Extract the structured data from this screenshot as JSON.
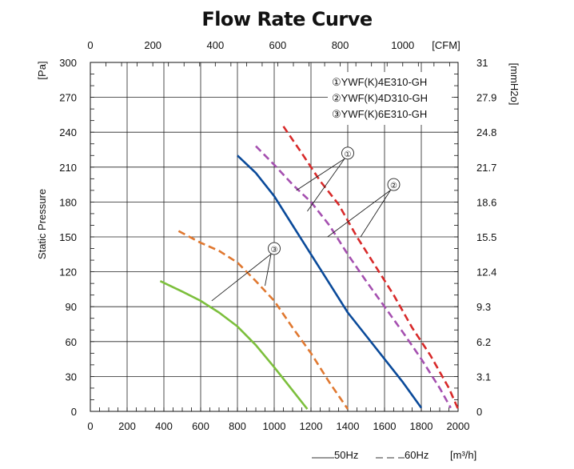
{
  "chart_data": {
    "type": "line",
    "title": "Flow Rate Curve",
    "ylabel": "Static Pressure",
    "x_unit": "[m³/h]",
    "x2_unit": "[CFM]",
    "y_unit": "[Pa]",
    "y2_unit": "[mmH2o]",
    "xlim": [
      0,
      2000
    ],
    "ylim": [
      0,
      300
    ],
    "grid": true,
    "x_ticks": [
      "0",
      "200",
      "400",
      "600",
      "800",
      "1000",
      "1200",
      "1400",
      "1600",
      "1800",
      "2000"
    ],
    "y_ticks": [
      "0",
      "30",
      "60",
      "90",
      "120",
      "150",
      "180",
      "210",
      "240",
      "270",
      "300"
    ],
    "x2_ticks": [
      {
        "label": "0",
        "x": 0
      },
      {
        "label": "200",
        "x": 340
      },
      {
        "label": "400",
        "x": 680
      },
      {
        "label": "600",
        "x": 1019
      },
      {
        "label": "800",
        "x": 1359
      },
      {
        "label": "1000",
        "x": 1699
      }
    ],
    "y2_ticks": [
      {
        "label": "0",
        "y": 0
      },
      {
        "label": "3.1",
        "y": 30
      },
      {
        "label": "6.2",
        "y": 60
      },
      {
        "label": "9.3",
        "y": 90
      },
      {
        "label": "12.4",
        "y": 120
      },
      {
        "label": "15.5",
        "y": 150
      },
      {
        "label": "18.6",
        "y": 180
      },
      {
        "label": "21.7",
        "y": 210
      },
      {
        "label": "24.8",
        "y": 240
      },
      {
        "label": "27.9",
        "y": 270
      },
      {
        "label": "31",
        "y": 300
      }
    ],
    "legend": [
      "①YWF(K)4E310-GH",
      "②YWF(K)4D310-GH",
      "③YWF(K)6E310-GH"
    ],
    "legend_position": "top-right",
    "frequency_legend": [
      {
        "label": "50Hz",
        "style": "solid"
      },
      {
        "label": "60Hz",
        "style": "dashed"
      }
    ],
    "series": [
      {
        "id": "1-50",
        "curve": "1",
        "freq": "50Hz",
        "color": "#0a4a9a",
        "dashed": false,
        "x": [
          800,
          900,
          1000,
          1100,
          1200,
          1300,
          1400,
          1500,
          1600,
          1700,
          1800
        ],
        "y": [
          220,
          205,
          185,
          160,
          135,
          110,
          85,
          65,
          45,
          25,
          3
        ]
      },
      {
        "id": "1-60",
        "curve": "1",
        "freq": "60Hz",
        "color": "#d82a2a",
        "dashed": true,
        "x": [
          1050,
          1150,
          1250,
          1350,
          1450,
          1550,
          1650,
          1750,
          1850,
          1950,
          2000
        ],
        "y": [
          245,
          222,
          198,
          178,
          150,
          125,
          100,
          72,
          48,
          20,
          2
        ]
      },
      {
        "id": "2-60",
        "curve": "2",
        "freq": "60Hz",
        "color": "#a550b0",
        "dashed": true,
        "x": [
          900,
          1000,
          1100,
          1200,
          1300,
          1400,
          1500,
          1600,
          1700,
          1800,
          1900,
          1960
        ],
        "y": [
          228,
          212,
          195,
          180,
          160,
          135,
          112,
          90,
          68,
          45,
          20,
          3
        ]
      },
      {
        "id": "3-60",
        "curve": "3",
        "freq": "60Hz",
        "color": "#e07830",
        "dashed": true,
        "x": [
          480,
          600,
          700,
          800,
          900,
          1000,
          1100,
          1200,
          1300,
          1400
        ],
        "y": [
          155,
          145,
          138,
          128,
          112,
          95,
          72,
          50,
          25,
          2
        ]
      },
      {
        "id": "3-50",
        "curve": "3",
        "freq": "50Hz",
        "color": "#7cbf3c",
        "dashed": false,
        "x": [
          380,
          500,
          600,
          700,
          800,
          900,
          1000,
          1100,
          1180
        ],
        "y": [
          112,
          103,
          95,
          85,
          73,
          57,
          38,
          18,
          2
        ]
      }
    ],
    "annotations": [
      {
        "label": "①",
        "x": 1400,
        "y": 222,
        "targets": [
          [
            1120,
            190
          ],
          [
            1180,
            172
          ]
        ]
      },
      {
        "label": "②",
        "x": 1650,
        "y": 195,
        "targets": [
          [
            1290,
            150
          ],
          [
            1470,
            150
          ]
        ]
      },
      {
        "label": "③",
        "x": 1000,
        "y": 140,
        "targets": [
          [
            660,
            95
          ],
          [
            950,
            108
          ]
        ]
      }
    ]
  }
}
